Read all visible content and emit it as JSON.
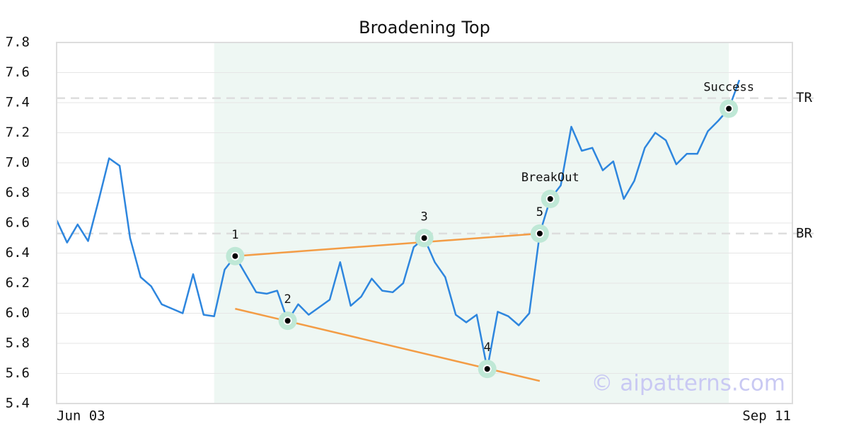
{
  "chart_data": {
    "type": "line",
    "title": "Broadening Top",
    "categories": [
      "Jun 03",
      null,
      null,
      null,
      null,
      null,
      null,
      null,
      null,
      null,
      null,
      null,
      null,
      null,
      null,
      null,
      null,
      null,
      null,
      null,
      null,
      null,
      null,
      null,
      null,
      null,
      null,
      null,
      null,
      null,
      null,
      null,
      null,
      null,
      null,
      null,
      null,
      null,
      null,
      null,
      null,
      null,
      null,
      null,
      null,
      null,
      null,
      null,
      null,
      null,
      null,
      null,
      null,
      null,
      null,
      null,
      null,
      null,
      null,
      null,
      null,
      null,
      null,
      null,
      null,
      "Sep 11"
    ],
    "values": [
      6.62,
      6.47,
      6.59,
      6.48,
      6.75,
      7.03,
      6.98,
      6.5,
      6.24,
      6.18,
      6.06,
      6.03,
      6.0,
      6.26,
      5.99,
      5.98,
      6.29,
      6.38,
      6.26,
      6.14,
      6.13,
      6.15,
      5.95,
      6.06,
      5.99,
      6.04,
      6.09,
      6.34,
      6.05,
      6.11,
      6.23,
      6.15,
      6.14,
      6.2,
      6.44,
      6.5,
      6.34,
      6.24,
      5.99,
      5.94,
      5.99,
      5.63,
      6.01,
      5.98,
      5.92,
      6.0,
      6.53,
      6.76,
      6.85,
      7.24,
      7.08,
      7.1,
      6.95,
      7.01,
      6.76,
      6.88,
      7.1,
      7.2,
      7.15,
      6.99,
      7.06,
      7.06,
      7.21,
      7.28,
      7.36,
      7.55
    ],
    "color": "#2e86de",
    "ylim": [
      5.4,
      7.8
    ],
    "yticks": [
      5.4,
      5.6,
      5.8,
      {
        "value": 6,
        "label": "6.0"
      },
      6.2,
      6.4,
      6.6,
      6.8,
      {
        "value": 7,
        "label": "7.0"
      },
      7.2,
      7.4,
      7.6,
      7.8
    ],
    "grid": true,
    "highlight": [
      15,
      64
    ],
    "levels": [
      {
        "label": "TR",
        "value": 7.43
      },
      {
        "label": "BR",
        "value": 6.53
      }
    ],
    "trendlines": [
      {
        "from": 17,
        "to": 46,
        "start": 6.38,
        "end": 6.53,
        "color": "#f39c45"
      },
      {
        "from": 17,
        "to": 46,
        "start": 6.03,
        "end": 5.55,
        "color": "#f39c45"
      }
    ],
    "markers": [
      {
        "index": 17,
        "label": "1"
      },
      {
        "index": 22,
        "label": "2"
      },
      {
        "index": 35,
        "label": "3"
      },
      {
        "index": 41,
        "label": "4"
      },
      {
        "index": 46,
        "label": "5"
      },
      {
        "index": 47,
        "label": "BreakOut"
      },
      {
        "index": 64,
        "label": "Success"
      }
    ],
    "watermark": "© aipatterns.com"
  }
}
